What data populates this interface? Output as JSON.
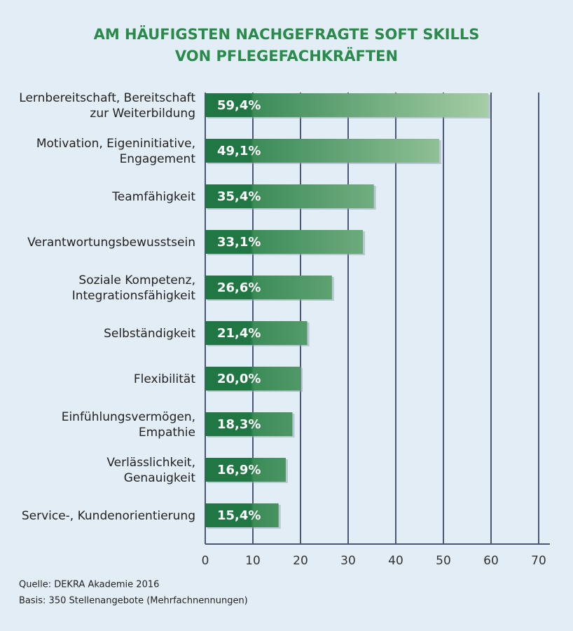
{
  "chart_data": {
    "type": "bar",
    "orientation": "horizontal",
    "title": [
      "AM HÄUFIGSTEN NACHGEFRAGTE SOFT SKILLS",
      "VON PFLEGEFACHKRÄFTEN"
    ],
    "categories": [
      [
        "Lernbereitschaft, Bereitschaft",
        "zur Weiterbildung"
      ],
      [
        "Motivation, Eigeninitiative,",
        "Engagement"
      ],
      [
        "Teamfähigkeit"
      ],
      [
        "Verantwortungsbewusstsein"
      ],
      [
        "Soziale Kompetenz,",
        "Integrationsfähigkeit"
      ],
      [
        "Selbständigkeit"
      ],
      [
        "Flexibilität"
      ],
      [
        "Einfühlungsvermögen,",
        "Empathie"
      ],
      [
        "Verlässlichkeit,",
        "Genauigkeit"
      ],
      [
        "Service-, Kundenorientierung"
      ]
    ],
    "values": [
      59.4,
      49.1,
      35.4,
      33.1,
      26.6,
      21.4,
      20.0,
      18.3,
      16.9,
      15.4
    ],
    "value_labels": [
      "59,4%",
      "49,1%",
      "35,4%",
      "33,1%",
      "26,6%",
      "21,4%",
      "20,0%",
      "18,3%",
      "16,9%",
      "15,4%"
    ],
    "color": "#217744",
    "xlim": [
      0,
      70
    ],
    "xticks": [
      0,
      10,
      20,
      30,
      40,
      50,
      60,
      70
    ],
    "grid": true,
    "notes": [
      "Quelle: DEKRA Akademie 2016",
      "Basis: 350 Stellenangebote (Mehrfachnennungen)"
    ]
  }
}
